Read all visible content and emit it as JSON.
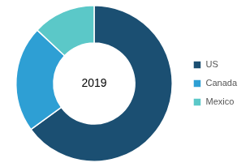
{
  "chart_data": {
    "type": "doughnut",
    "categories": [
      "US",
      "Canada",
      "Mexico"
    ],
    "values": [
      65,
      22,
      13
    ],
    "colors": [
      "#1b4f72",
      "#2e9fd4",
      "#5bc8c8"
    ],
    "annotation": "2019",
    "legend": "right"
  }
}
